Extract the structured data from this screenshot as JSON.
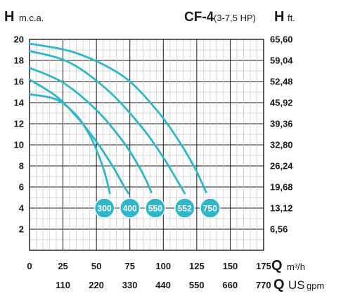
{
  "header": {
    "left_axis_symbol": "H",
    "left_axis_unit": "m.c.a.",
    "model": "CF-4",
    "power": "(3-7,5 HP)",
    "right_axis_symbol": "H",
    "right_axis_unit": "ft."
  },
  "footer": {
    "flow_symbol": "Q",
    "flow_unit_m3h": "m³/h",
    "flow_symbol_us": "Q",
    "flow_unit_us_prefix": "US",
    "flow_unit_us_suffix": "gpm"
  },
  "colors": {
    "curve": "#2db7c9",
    "badge": "#2db7c9",
    "grid_major": "#1a1a1a",
    "grid_minor": "#c8c8c8"
  },
  "chart_data": {
    "type": "line",
    "title": "CF-4 (3-7,5 HP)",
    "xlabel": "Q m³/h",
    "ylabel": "H m.c.a.",
    "xlim": [
      0,
      175
    ],
    "ylim": [
      0,
      20
    ],
    "x_ticks": [
      "0",
      "25",
      "50",
      "75",
      "100",
      "125",
      "150",
      "175"
    ],
    "x_ticks_secondary": {
      "unit": "US gpm",
      "values": [
        110,
        220,
        330,
        440,
        550,
        660,
        770
      ],
      "labels": [
        "110",
        "220",
        "330",
        "440",
        "550",
        "660",
        "770"
      ]
    },
    "y_ticks": [
      "2",
      "4",
      "6",
      "8",
      "10",
      "12",
      "14",
      "16",
      "18",
      "20"
    ],
    "y_ticks_secondary": {
      "unit": "ft.",
      "values": [
        2,
        4,
        6,
        8,
        10,
        12,
        14,
        16,
        18,
        20
      ],
      "labels": [
        "6,56",
        "13,12",
        "19,68",
        "26,24",
        "32,80",
        "39,36",
        "45,92",
        "52,48",
        "59,04",
        "65,60"
      ]
    },
    "grid": true,
    "series": [
      {
        "name": "300",
        "label_at": [
          56,
          4
        ],
        "points": [
          [
            0,
            14.8
          ],
          [
            20,
            14.3
          ],
          [
            35,
            12.8
          ],
          [
            45,
            10.9
          ],
          [
            52,
            8.9
          ],
          [
            57,
            7.0
          ],
          [
            60,
            5.4
          ]
        ]
      },
      {
        "name": "400",
        "label_at": [
          75,
          4
        ],
        "points": [
          [
            0,
            16.2
          ],
          [
            20,
            14.6
          ],
          [
            35,
            12.7
          ],
          [
            50,
            10.3
          ],
          [
            62,
            8.0
          ],
          [
            70,
            6.2
          ],
          [
            74,
            5.4
          ]
        ]
      },
      {
        "name": "550",
        "label_at": [
          94,
          4
        ],
        "points": [
          [
            0,
            17.3
          ],
          [
            25,
            15.9
          ],
          [
            50,
            13.3
          ],
          [
            70,
            10.3
          ],
          [
            82,
            7.9
          ],
          [
            88,
            6.4
          ],
          [
            91,
            5.5
          ]
        ]
      },
      {
        "name": "552",
        "label_at": [
          116,
          4
        ],
        "points": [
          [
            0,
            18.9
          ],
          [
            30,
            17.8
          ],
          [
            60,
            15.0
          ],
          [
            85,
            11.5
          ],
          [
            100,
            8.8
          ],
          [
            110,
            6.7
          ],
          [
            116,
            5.4
          ]
        ]
      },
      {
        "name": "750",
        "label_at": [
          135,
          4
        ],
        "points": [
          [
            0,
            19.6
          ],
          [
            35,
            18.7
          ],
          [
            70,
            16.5
          ],
          [
            95,
            13.3
          ],
          [
            112,
            10.3
          ],
          [
            124,
            7.7
          ],
          [
            132,
            5.5
          ]
        ]
      }
    ]
  }
}
